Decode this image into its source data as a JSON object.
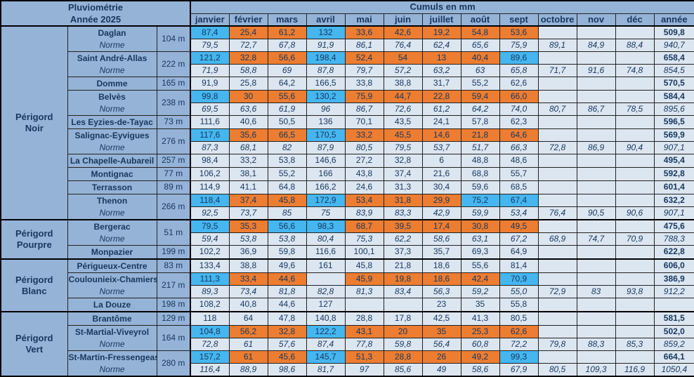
{
  "header": {
    "title_line1": "Pluviométrie",
    "title_line2": "Année 2025",
    "cumuls_label": "Cumuls en mm"
  },
  "labels": {
    "norme": "Norme"
  },
  "colors": {
    "header_bg": "#95B3D7",
    "cell_bg": "#DCE6F1",
    "above_norm": "#45B6F0",
    "below_norm": "#ED7D31",
    "text_color": "#17375D"
  },
  "chart_data": {
    "type": "table",
    "title": "Pluviométrie Année 2025 — Cumuls en mm",
    "columns": [
      "janvier",
      "février",
      "mars",
      "avril",
      "mai",
      "juin",
      "juillet",
      "août",
      "sept",
      "octobre",
      "nov",
      "déc",
      "année"
    ],
    "color_coding": {
      "c": "above monthly norm (blue)",
      "o": "below monthly norm (orange)",
      "": "no comparison"
    },
    "regions": [
      {
        "name": "Périgord Noir",
        "name_lines": [
          "Périgord",
          "Noir"
        ],
        "stations": [
          {
            "name": "Daglan",
            "altitude": "104 m",
            "values": [
              "87,4",
              "25,4",
              "61,2",
              "132",
              "33,6",
              "42,6",
              "19,2",
              "54,8",
              "53,6",
              "",
              "",
              "",
              "509,8"
            ],
            "colors": [
              "c",
              "o",
              "o",
              "c",
              "o",
              "o",
              "o",
              "o",
              "o",
              "",
              "",
              "",
              ""
            ],
            "norme": [
              "79,5",
              "72,7",
              "67,8",
              "91,9",
              "86,1",
              "76,4",
              "62,4",
              "65,6",
              "75,9",
              "89,1",
              "84,9",
              "88,4",
              "940,7"
            ]
          },
          {
            "name": "Saint André-Allas",
            "altitude": "222 m",
            "values": [
              "121,2",
              "32,8",
              "56,6",
              "198,4",
              "52,4",
              "54",
              "13",
              "40,4",
              "89,6",
              "",
              "",
              "",
              "658,4"
            ],
            "colors": [
              "c",
              "o",
              "o",
              "c",
              "o",
              "o",
              "o",
              "o",
              "c",
              "",
              "",
              "",
              ""
            ],
            "norme": [
              "71,9",
              "58,8",
              "69",
              "87,8",
              "79,7",
              "57,2",
              "63,2",
              "63",
              "65,8",
              "71,7",
              "91,6",
              "74,8",
              "854,5"
            ]
          },
          {
            "name": "Domme",
            "altitude": "165 m",
            "values": [
              "91,9",
              "25,8",
              "64,2",
              "166,5",
              "33,8",
              "38,8",
              "31,7",
              "55,2",
              "62,6",
              "",
              "",
              "",
              "570,5"
            ],
            "colors": null,
            "norme": null
          },
          {
            "name": "Belvès",
            "altitude": "238 m",
            "values": [
              "99,8",
              "30",
              "55,6",
              "130,2",
              "75,9",
              "44,7",
              "22,8",
              "59,4",
              "66,0",
              "",
              "",
              "",
              "584,4"
            ],
            "colors": [
              "c",
              "o",
              "o",
              "c",
              "o",
              "o",
              "o",
              "o",
              "o",
              "",
              "",
              "",
              ""
            ],
            "norme": [
              "69,5",
              "63,6",
              "61,9",
              "96",
              "86,7",
              "72,6",
              "61,2",
              "64,2",
              "74,0",
              "80,7",
              "86,7",
              "78,5",
              "895,6"
            ]
          },
          {
            "name": "Les Eyzies-de-Tayac",
            "altitude": "73 m",
            "values": [
              "111,6",
              "40,6",
              "50,5",
              "136",
              "70,1",
              "43,5",
              "24,1",
              "57,8",
              "62,3",
              "",
              "",
              "",
              "596,5"
            ],
            "colors": null,
            "norme": null
          },
          {
            "name": "Salignac-Eyvigues",
            "altitude": "276 m",
            "values": [
              "117,6",
              "35,6",
              "66,5",
              "170,5",
              "33,2",
              "45,5",
              "14,6",
              "21,8",
              "64,6",
              "",
              "",
              "",
              "569,9"
            ],
            "colors": [
              "c",
              "o",
              "o",
              "c",
              "o",
              "o",
              "o",
              "o",
              "o",
              "",
              "",
              "",
              ""
            ],
            "norme": [
              "87,3",
              "68,1",
              "82",
              "87,9",
              "80,5",
              "79,5",
              "53,7",
              "51,7",
              "66,3",
              "72,8",
              "86,9",
              "90,4",
              "907,1"
            ]
          },
          {
            "name": "La Chapelle-Aubareil",
            "altitude": "257 m",
            "values": [
              "98,4",
              "33,2",
              "53,8",
              "146,6",
              "27,2",
              "32,8",
              "6",
              "48,8",
              "48,6",
              "",
              "",
              "",
              "495,4"
            ],
            "colors": null,
            "norme": null
          },
          {
            "name": "Montignac",
            "altitude": "77 m",
            "values": [
              "106,2",
              "38,1",
              "55,2",
              "166",
              "43,8",
              "37,4",
              "21,6",
              "68,8",
              "55,7",
              "",
              "",
              "",
              "592,8"
            ],
            "colors": null,
            "norme": null
          },
          {
            "name": "Terrasson",
            "altitude": "89 m",
            "values": [
              "114,9",
              "41,1",
              "64,8",
              "166,2",
              "24,6",
              "31,3",
              "30,4",
              "59,6",
              "68,5",
              "",
              "",
              "",
              "601,4"
            ],
            "colors": null,
            "norme": null
          },
          {
            "name": "Thenon",
            "altitude": "266 m",
            "values": [
              "118,4",
              "37,4",
              "45,8",
              "172,9",
              "53,4",
              "31,8",
              "29,9",
              "75,2",
              "67,4",
              "",
              "",
              "",
              "632,2"
            ],
            "colors": [
              "c",
              "o",
              "o",
              "c",
              "o",
              "o",
              "o",
              "c",
              "c",
              "",
              "",
              "",
              ""
            ],
            "norme": [
              "92,5",
              "73,7",
              "85",
              "75",
              "83,9",
              "83,3",
              "42,9",
              "59,9",
              "53,4",
              "76,4",
              "90,5",
              "90,6",
              "907,1"
            ]
          }
        ]
      },
      {
        "name": "Périgord Pourpre",
        "name_lines": [
          "Périgord",
          "Pourpre"
        ],
        "stations": [
          {
            "name": "Bergerac",
            "altitude": "51 m",
            "values": [
              "79,5",
              "35,3",
              "56,6",
              "98,3",
              "68,7",
              "39,5",
              "17,4",
              "30,8",
              "49,5",
              "",
              "",
              "",
              "475,6"
            ],
            "colors": [
              "c",
              "o",
              "c",
              "c",
              "o",
              "o",
              "o",
              "o",
              "o",
              "",
              "",
              "",
              ""
            ],
            "norme": [
              "59,4",
              "53,8",
              "53,8",
              "80,4",
              "75,3",
              "62,2",
              "58,6",
              "63,1",
              "67,2",
              "68,9",
              "74,7",
              "70,9",
              "788,3"
            ]
          },
          {
            "name": "Monpazier",
            "altitude": "199 m",
            "values": [
              "102,2",
              "36,9",
              "59,8",
              "116,6",
              "100,1",
              "37,3",
              "35,7",
              "69,3",
              "64,9",
              "",
              "",
              "",
              "622,8"
            ],
            "colors": null,
            "norme": null
          }
        ]
      },
      {
        "name": "Périgord Blanc",
        "name_lines": [
          "Périgord",
          "Blanc"
        ],
        "stations": [
          {
            "name": "Périgueux-Centre",
            "altitude": "83 m",
            "values": [
              "133,4",
              "38,8",
              "49,6",
              "161",
              "45,8",
              "21,8",
              "18,6",
              "55,6",
              "81,4",
              "",
              "",
              "",
              "606,0"
            ],
            "colors": null,
            "norme": null
          },
          {
            "name": "Coulounieix-Chamiers",
            "altitude": "217 m",
            "values": [
              "111,3",
              "33,4",
              "44,6",
              "",
              "45,9",
              "19,8",
              "18,6",
              "42,4",
              "70,9",
              "",
              "",
              "",
              "386,9"
            ],
            "colors": [
              "c",
              "o",
              "o",
              "",
              "o",
              "o",
              "o",
              "o",
              "c",
              "",
              "",
              "",
              ""
            ],
            "norme": [
              "89,3",
              "73,4",
              "81,8",
              "82,8",
              "81,3",
              "83,4",
              "56,3",
              "59,2",
              "55,0",
              "72,9",
              "83",
              "93,8",
              "912,2"
            ]
          },
          {
            "name": "La Douze",
            "altitude": "198 m",
            "values": [
              "108,2",
              "40,8",
              "44,6",
              "127",
              "",
              "",
              "23",
              "35",
              "55,8",
              "",
              "",
              "",
              ""
            ],
            "colors": null,
            "norme": null
          }
        ]
      },
      {
        "name": "Périgord Vert",
        "name_lines": [
          "Périgord",
          "Vert"
        ],
        "stations": [
          {
            "name": "Brantôme",
            "altitude": "129 m",
            "values": [
              "118",
              "64",
              "47,8",
              "140,8",
              "28,8",
              "17,8",
              "42,5",
              "41,3",
              "80,5",
              "",
              "",
              "",
              "581,5"
            ],
            "colors": null,
            "norme": null
          },
          {
            "name": "St-Martial-Viveyrol",
            "altitude": "164 m",
            "values": [
              "104,8",
              "56,2",
              "32,8",
              "122,2",
              "43,1",
              "20",
              "35",
              "25,3",
              "62,6",
              "",
              "",
              "",
              "502,0"
            ],
            "colors": [
              "c",
              "o",
              "o",
              "c",
              "o",
              "o",
              "o",
              "o",
              "o",
              "",
              "",
              "",
              ""
            ],
            "norme": [
              "72,8",
              "61",
              "57,6",
              "87,4",
              "77,8",
              "59,8",
              "56,4",
              "60,8",
              "72,2",
              "79,8",
              "88,3",
              "85,3",
              "859,2"
            ]
          },
          {
            "name": "St-Martin-Fressengeas",
            "altitude": "280 m",
            "values": [
              "157,2",
              "61",
              "45,6",
              "145,7",
              "51,3",
              "28,8",
              "26",
              "49,2",
              "99,3",
              "",
              "",
              "",
              "664,1"
            ],
            "colors": [
              "c",
              "o",
              "o",
              "c",
              "o",
              "o",
              "o",
              "o",
              "c",
              "",
              "",
              "",
              ""
            ],
            "norme": [
              "116,4",
              "88,9",
              "98,6",
              "81,7",
              "97",
              "85,6",
              "49",
              "58,6",
              "67,9",
              "80,5",
              "109,3",
              "116,9",
              "1050,4"
            ]
          }
        ]
      }
    ]
  }
}
